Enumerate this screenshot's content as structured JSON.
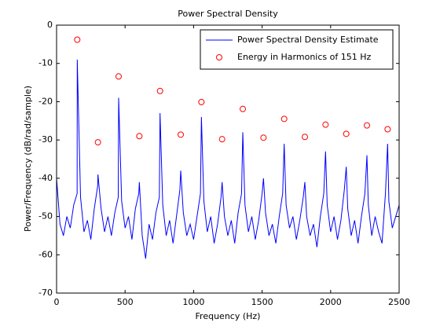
{
  "chart_data": {
    "type": "line",
    "title": "Power Spectral Density",
    "xlabel": "Frequency (Hz)",
    "ylabel": "Power/Frequency (dB/rad/sample)",
    "xlim": [
      0,
      2500
    ],
    "ylim": [
      -70,
      0
    ],
    "xticks": [
      0,
      500,
      1000,
      1500,
      2000,
      2500
    ],
    "yticks": [
      0,
      -10,
      -20,
      -30,
      -40,
      -50,
      -60,
      -70
    ],
    "grid": false,
    "legend": "upper right",
    "series": [
      {
        "name": "Power Spectral Density Estimate",
        "color": "#0000ff",
        "marker": "none",
        "x": [
          0,
          25,
          50,
          75,
          100,
          125,
          150,
          151,
          175,
          200,
          225,
          250,
          275,
          300,
          302,
          325,
          350,
          375,
          400,
          425,
          450,
          453,
          475,
          500,
          525,
          550,
          575,
          600,
          604,
          625,
          650,
          675,
          700,
          725,
          750,
          755,
          775,
          800,
          825,
          850,
          875,
          900,
          906,
          925,
          950,
          975,
          1000,
          1025,
          1050,
          1057,
          1075,
          1100,
          1125,
          1150,
          1175,
          1200,
          1208,
          1225,
          1250,
          1275,
          1300,
          1325,
          1350,
          1359,
          1375,
          1400,
          1425,
          1450,
          1475,
          1500,
          1510,
          1525,
          1550,
          1575,
          1600,
          1625,
          1650,
          1661,
          1675,
          1700,
          1725,
          1750,
          1775,
          1800,
          1812,
          1825,
          1850,
          1875,
          1900,
          1925,
          1950,
          1963,
          1975,
          2000,
          2025,
          2050,
          2075,
          2100,
          2114,
          2125,
          2150,
          2175,
          2200,
          2225,
          2250,
          2265,
          2275,
          2300,
          2325,
          2350,
          2375,
          2400,
          2416,
          2425,
          2450,
          2475,
          2500
        ],
        "values": [
          -40,
          -52,
          -55,
          -50,
          -53,
          -47,
          -44,
          -9,
          -45,
          -54,
          -51,
          -56,
          -48,
          -42,
          -39,
          -48,
          -54,
          -50,
          -55,
          -49,
          -45,
          -19,
          -46,
          -53,
          -50,
          -56,
          -48,
          -44,
          -41,
          -55,
          -61,
          -52,
          -56,
          -49,
          -45,
          -23,
          -47,
          -55,
          -51,
          -57,
          -50,
          -43,
          -38,
          -49,
          -55,
          -52,
          -56,
          -50,
          -44,
          -24,
          -46,
          -54,
          -50,
          -57,
          -52,
          -45,
          -41,
          -50,
          -55,
          -51,
          -57,
          -49,
          -44,
          -28,
          -47,
          -54,
          -50,
          -56,
          -51,
          -44,
          -40,
          -49,
          -55,
          -52,
          -57,
          -50,
          -44,
          -31,
          -47,
          -53,
          -50,
          -56,
          -51,
          -45,
          -41,
          -50,
          -55,
          -52,
          -58,
          -50,
          -44,
          -33,
          -47,
          -54,
          -50,
          -56,
          -51,
          -43,
          -37,
          -48,
          -55,
          -51,
          -57,
          -50,
          -44,
          -34,
          -47,
          -55,
          -50,
          -54,
          -57,
          -44,
          -31,
          -46,
          -53,
          -50,
          -47
        ]
      },
      {
        "name": "Energy in Harmonics of 151 Hz",
        "color": "#ff0000",
        "marker": "circle",
        "x": [
          151,
          302,
          453,
          604,
          755,
          906,
          1057,
          1208,
          1359,
          1510,
          1661,
          1812,
          1963,
          2114,
          2265,
          2416
        ],
        "values": [
          -3.8,
          -30.6,
          -13.4,
          -29.0,
          -17.2,
          -28.6,
          -20.1,
          -29.8,
          -21.9,
          -29.4,
          -24.5,
          -29.2,
          -26.0,
          -28.4,
          -26.2,
          -27.2
        ]
      }
    ]
  }
}
